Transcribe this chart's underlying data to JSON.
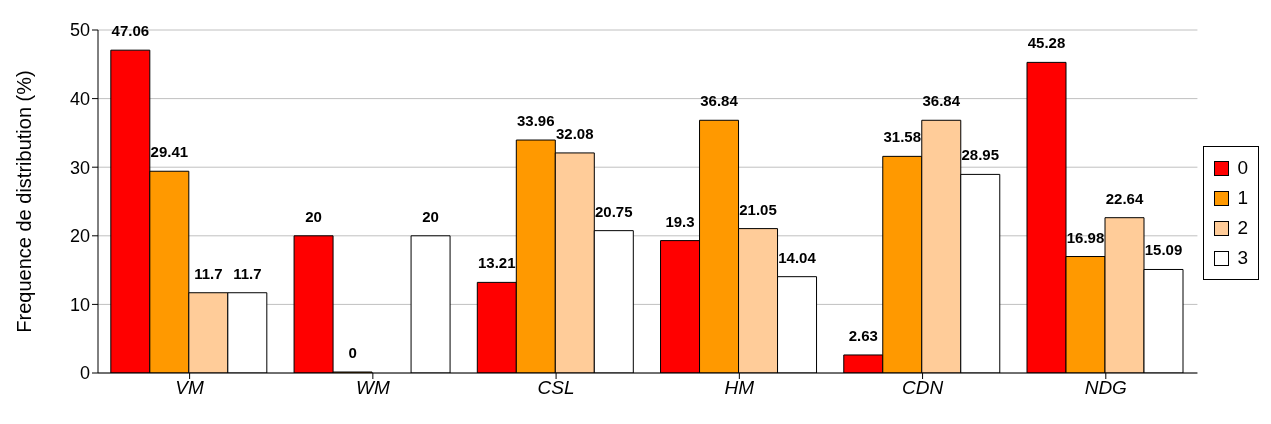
{
  "chart_data": {
    "type": "bar",
    "ylabel": "Frequence de distribution (%)",
    "categories": [
      "VM",
      "WM",
      "CSL",
      "HM",
      "CDN",
      "NDG"
    ],
    "series": [
      {
        "name": "0",
        "color": "#ff0000",
        "values": [
          47.06,
          20,
          13.21,
          19.3,
          2.63,
          45.28
        ]
      },
      {
        "name": "1",
        "color": "#ff9900",
        "values": [
          29.41,
          0,
          33.96,
          36.84,
          31.58,
          16.98
        ]
      },
      {
        "name": "2",
        "color": "#ffcc99",
        "values": [
          11.7,
          null,
          32.08,
          21.05,
          36.84,
          22.64
        ]
      },
      {
        "name": "3",
        "color": "#ffffff",
        "values": [
          11.7,
          20,
          20.75,
          14.04,
          28.95,
          15.09
        ]
      }
    ],
    "ylim": [
      0,
      50
    ],
    "yticks": [
      0,
      10,
      20,
      30,
      40,
      50
    ],
    "grid": "y",
    "legend": "right",
    "data_labels": true
  }
}
